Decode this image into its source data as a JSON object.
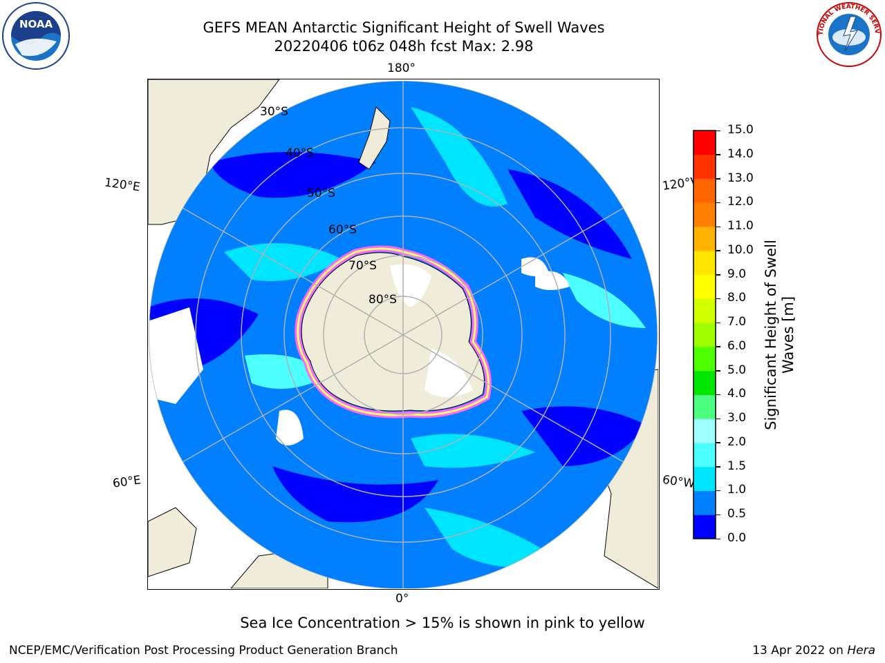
{
  "header": {
    "title_line1": "GEFS MEAN Antarctic Significant Height of Swell Waves",
    "title_line2": "20220406 t06z 048h fcst   Max: 2.98"
  },
  "logos": {
    "left": "NOAA",
    "right_text": "NATIONAL WEATHER SERVICE"
  },
  "map": {
    "longitude_labels": {
      "top": "180°",
      "bottom": "0°",
      "left_upper": "120°E",
      "left_lower": "60°E",
      "right_upper": "120°W",
      "right_lower": "60°W"
    },
    "latitude_labels": [
      "30°S",
      "40°S",
      "50°S",
      "60°S",
      "70°S",
      "80°S"
    ],
    "colors": {
      "land": "#efedd9",
      "sea_ice_low": "#ff66ff",
      "sea_ice_high": "#ffff66"
    }
  },
  "colorbar": {
    "label_line1": "Significant Height of Swell",
    "label_line2": "Waves [m]",
    "ticks": [
      "0.0",
      "0.5",
      "1.0",
      "1.5",
      "2.0",
      "3.0",
      "4.0",
      "5.0",
      "6.0",
      "7.0",
      "8.0",
      "9.0",
      "10.0",
      "11.0",
      "12.0",
      "13.0",
      "14.0",
      "15.0"
    ],
    "colors": [
      "#0000ff",
      "#0080ff",
      "#00e5ff",
      "#4dffff",
      "#a0ffff",
      "#4dff80",
      "#00e600",
      "#4dff00",
      "#a0ff00",
      "#d0ff00",
      "#ffff00",
      "#ffe600",
      "#ffb300",
      "#ff8000",
      "#ff6600",
      "#ff3300",
      "#ff0000"
    ]
  },
  "footer": {
    "note": "Sea Ice Concentration > 15% is shown in pink to yellow",
    "credit_left": "NCEP/EMC/Verification Post Processing Product Generation Branch",
    "credit_right_prefix": "13 Apr 2022 on ",
    "credit_right_host": "Hera"
  }
}
